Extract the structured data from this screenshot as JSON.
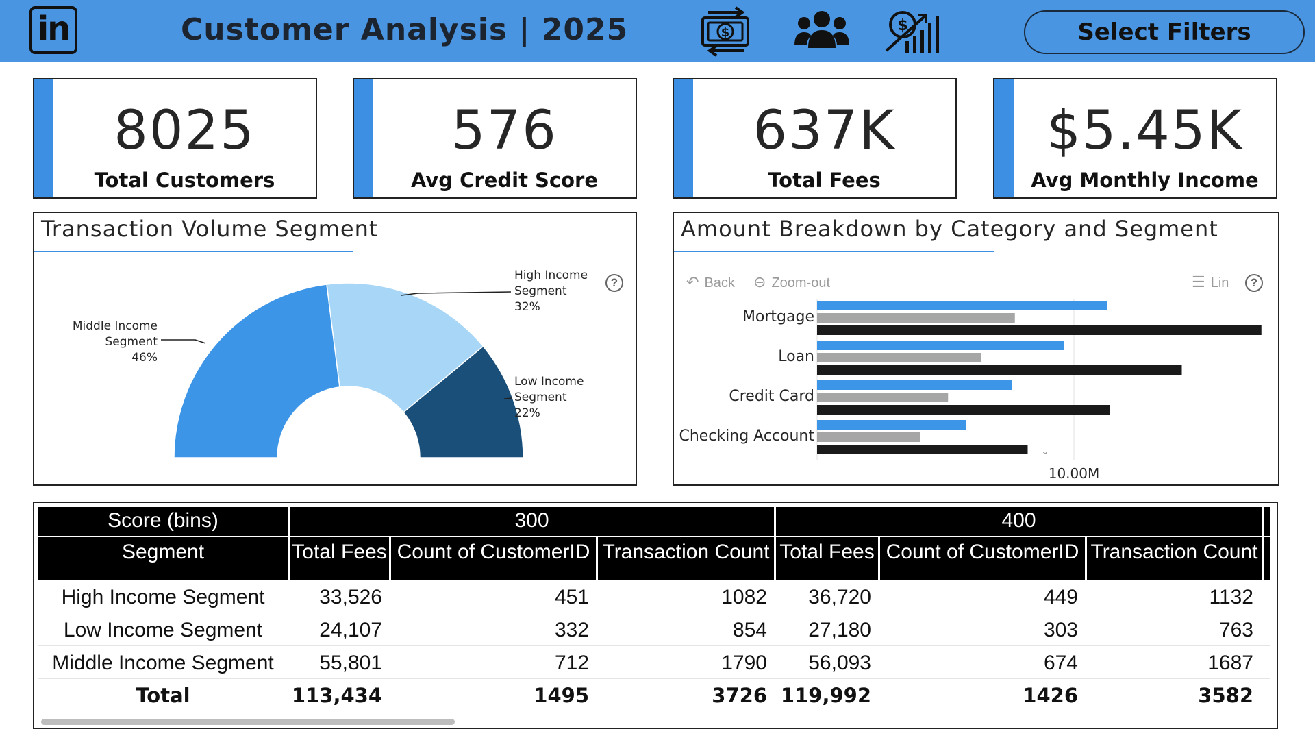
{
  "header": {
    "logo_text": "in",
    "title": "Customer Analysis | 2025",
    "icons": [
      "money-exchange-icon",
      "customers-group-icon",
      "revenue-growth-icon"
    ],
    "filters_button": "Select Filters",
    "accent": "#4a95e2"
  },
  "kpis": [
    {
      "value": "8025",
      "label": "Total Customers"
    },
    {
      "value": "576",
      "label": "Avg Credit Score"
    },
    {
      "value": "637K",
      "label": "Total Fees"
    },
    {
      "value": "$5.45K",
      "label": "Avg Monthly Income"
    }
  ],
  "donut_panel": {
    "title": "Transaction Volume Segment",
    "labels": [
      {
        "line1": "Middle Income",
        "line2": "Segment",
        "pct": "46%"
      },
      {
        "line1": "High Income",
        "line2": "Segment",
        "pct": "32%"
      },
      {
        "line1": "Low Income",
        "line2": "Segment",
        "pct": "22%"
      }
    ]
  },
  "bar_panel": {
    "title": "Amount Breakdown by Category and Segment",
    "back_label": "Back",
    "zoom_label": "Zoom-out",
    "lin_label": "Lin",
    "axis_tick": "10.00M"
  },
  "chart_data": [
    {
      "type": "pie",
      "title": "Transaction Volume Segment",
      "categories": [
        "Middle Income Segment",
        "High Income Segment",
        "Low Income Segment"
      ],
      "values": [
        46,
        32,
        22
      ],
      "colors": [
        "#3d95e8",
        "#a8d6f6",
        "#1a4f7a"
      ],
      "style": "half-donut"
    },
    {
      "type": "bar",
      "orientation": "horizontal",
      "title": "Amount Breakdown by Category and Segment",
      "categories": [
        "Mortgage",
        "Loan",
        "Credit Card",
        "Checking Account"
      ],
      "series": [
        {
          "values": [
            11.3,
            9.6,
            7.6,
            5.8
          ],
          "color": "#3d95e8"
        },
        {
          "values": [
            7.7,
            6.4,
            5.1,
            4.0
          ],
          "color": "#a6a6a6"
        },
        {
          "values": [
            17.3,
            14.2,
            11.4,
            8.2
          ],
          "color": "#1a1a1a"
        }
      ],
      "xlim": [
        0,
        20
      ],
      "x_tick_labels": [
        "10.00M"
      ]
    }
  ],
  "table": {
    "score_header": "Score (bins)",
    "segment_header": "Segment",
    "groups": [
      "300",
      "400"
    ],
    "columns": [
      "Total Fees",
      "Count of CustomerID",
      "Transaction Count",
      "Total Fees",
      "Count of CustomerID",
      "Transaction Count"
    ],
    "rows": [
      {
        "segment": "High Income Segment",
        "cells": [
          "33,526",
          "451",
          "1082",
          "36,720",
          "449",
          "1132"
        ]
      },
      {
        "segment": "Low Income Segment",
        "cells": [
          "24,107",
          "332",
          "854",
          "27,180",
          "303",
          "763"
        ]
      },
      {
        "segment": "Middle Income Segment",
        "cells": [
          "55,801",
          "712",
          "1790",
          "56,093",
          "674",
          "1687"
        ]
      }
    ],
    "total": {
      "segment": "Total",
      "cells": [
        "113,434",
        "1495",
        "3726",
        "119,992",
        "1426",
        "3582"
      ]
    }
  }
}
